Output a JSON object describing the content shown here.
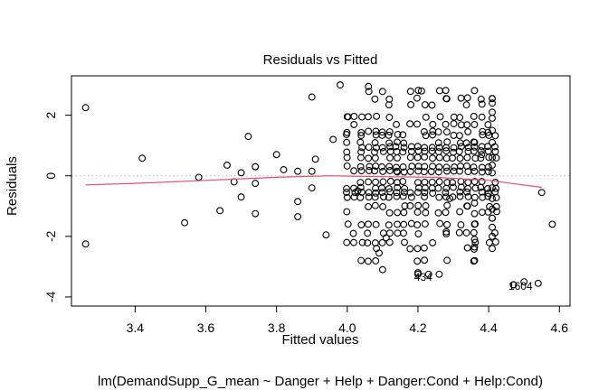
{
  "chart_data": {
    "type": "scatter",
    "title": "Residuals vs Fitted",
    "xlabel": "Fitted values",
    "ylabel": "Residuals",
    "subtitle": "lm(DemandSupp_G_mean ~ Danger + Help + Danger:Cond + Help:Cond)",
    "xlim": [
      3.22,
      4.63
    ],
    "ylim": [
      -4.3,
      3.3
    ],
    "x_ticks": [
      3.4,
      3.6,
      3.8,
      4.0,
      4.2,
      4.4,
      4.6
    ],
    "x_tick_labels": [
      "3.4",
      "3.6",
      "3.8",
      "4.0",
      "4.2",
      "4.4",
      "4.6"
    ],
    "y_ticks": [
      -4,
      -2,
      0,
      2
    ],
    "y_tick_labels": [
      "-4",
      "-2",
      "0",
      "2"
    ],
    "reference_line": {
      "y": 0,
      "style": "dotted",
      "color": "#bdbdbd"
    },
    "smooth_line": {
      "color": "#df536b",
      "x": [
        3.26,
        3.4,
        3.6,
        3.8,
        3.95,
        4.1,
        4.25,
        4.4,
        4.55
      ],
      "y": [
        -0.3,
        -0.25,
        -0.15,
        -0.05,
        0.0,
        -0.03,
        -0.05,
        -0.15,
        -0.38
      ]
    },
    "points": {
      "x": [
        3.26,
        3.26,
        3.42,
        3.54,
        3.58,
        3.64,
        3.66,
        3.68,
        3.7,
        3.7,
        3.72,
        3.74,
        3.74,
        3.74,
        3.74,
        3.8,
        3.82,
        3.86,
        3.86,
        3.86,
        3.9,
        3.9,
        3.9,
        3.91,
        3.94,
        3.96,
        3.98,
        4.0,
        4.03,
        4.06,
        4.09,
        4.1,
        4.11,
        4.14,
        4.2,
        4.2,
        4.21,
        4.23,
        4.26,
        4.28,
        4.28,
        4.29,
        4.34,
        4.36,
        4.38,
        4.41,
        4.41,
        4.47,
        4.47,
        4.5,
        4.54,
        4.55,
        4.58
      ],
      "y": [
        2.25,
        -2.25,
        0.58,
        -1.55,
        -0.05,
        -1.15,
        0.35,
        -0.2,
        -0.7,
        0.1,
        1.3,
        0.3,
        -0.25,
        -1.25,
        0.3,
        0.7,
        0.2,
        -0.85,
        -1.35,
        0.15,
        2.6,
        -0.4,
        0.15,
        0.55,
        -1.95,
        1.2,
        3.0,
        1.95,
        -0.5,
        2.95,
        -2.55,
        -3.1,
        -2.05,
        0.15,
        -3.2,
        -3.25,
        2.8,
        -3.25,
        -3.25,
        -1.85,
        2.55,
        -0.75,
        -1.0,
        1.1,
        0.7,
        2.55,
        -1.4,
        -3.6,
        -3.6,
        -3.5,
        -3.55,
        -0.55,
        -1.6
      ],
      "note": "Plus dense vertical stripes of points between fitted values 4.0 and 4.42, residuals roughly -2.8 to 2.8."
    },
    "point_labels": [
      {
        "text": "434",
        "x": 4.215,
        "y": -3.35
      },
      {
        "text": "1604",
        "x": 4.49,
        "y": -3.65
      }
    ]
  }
}
